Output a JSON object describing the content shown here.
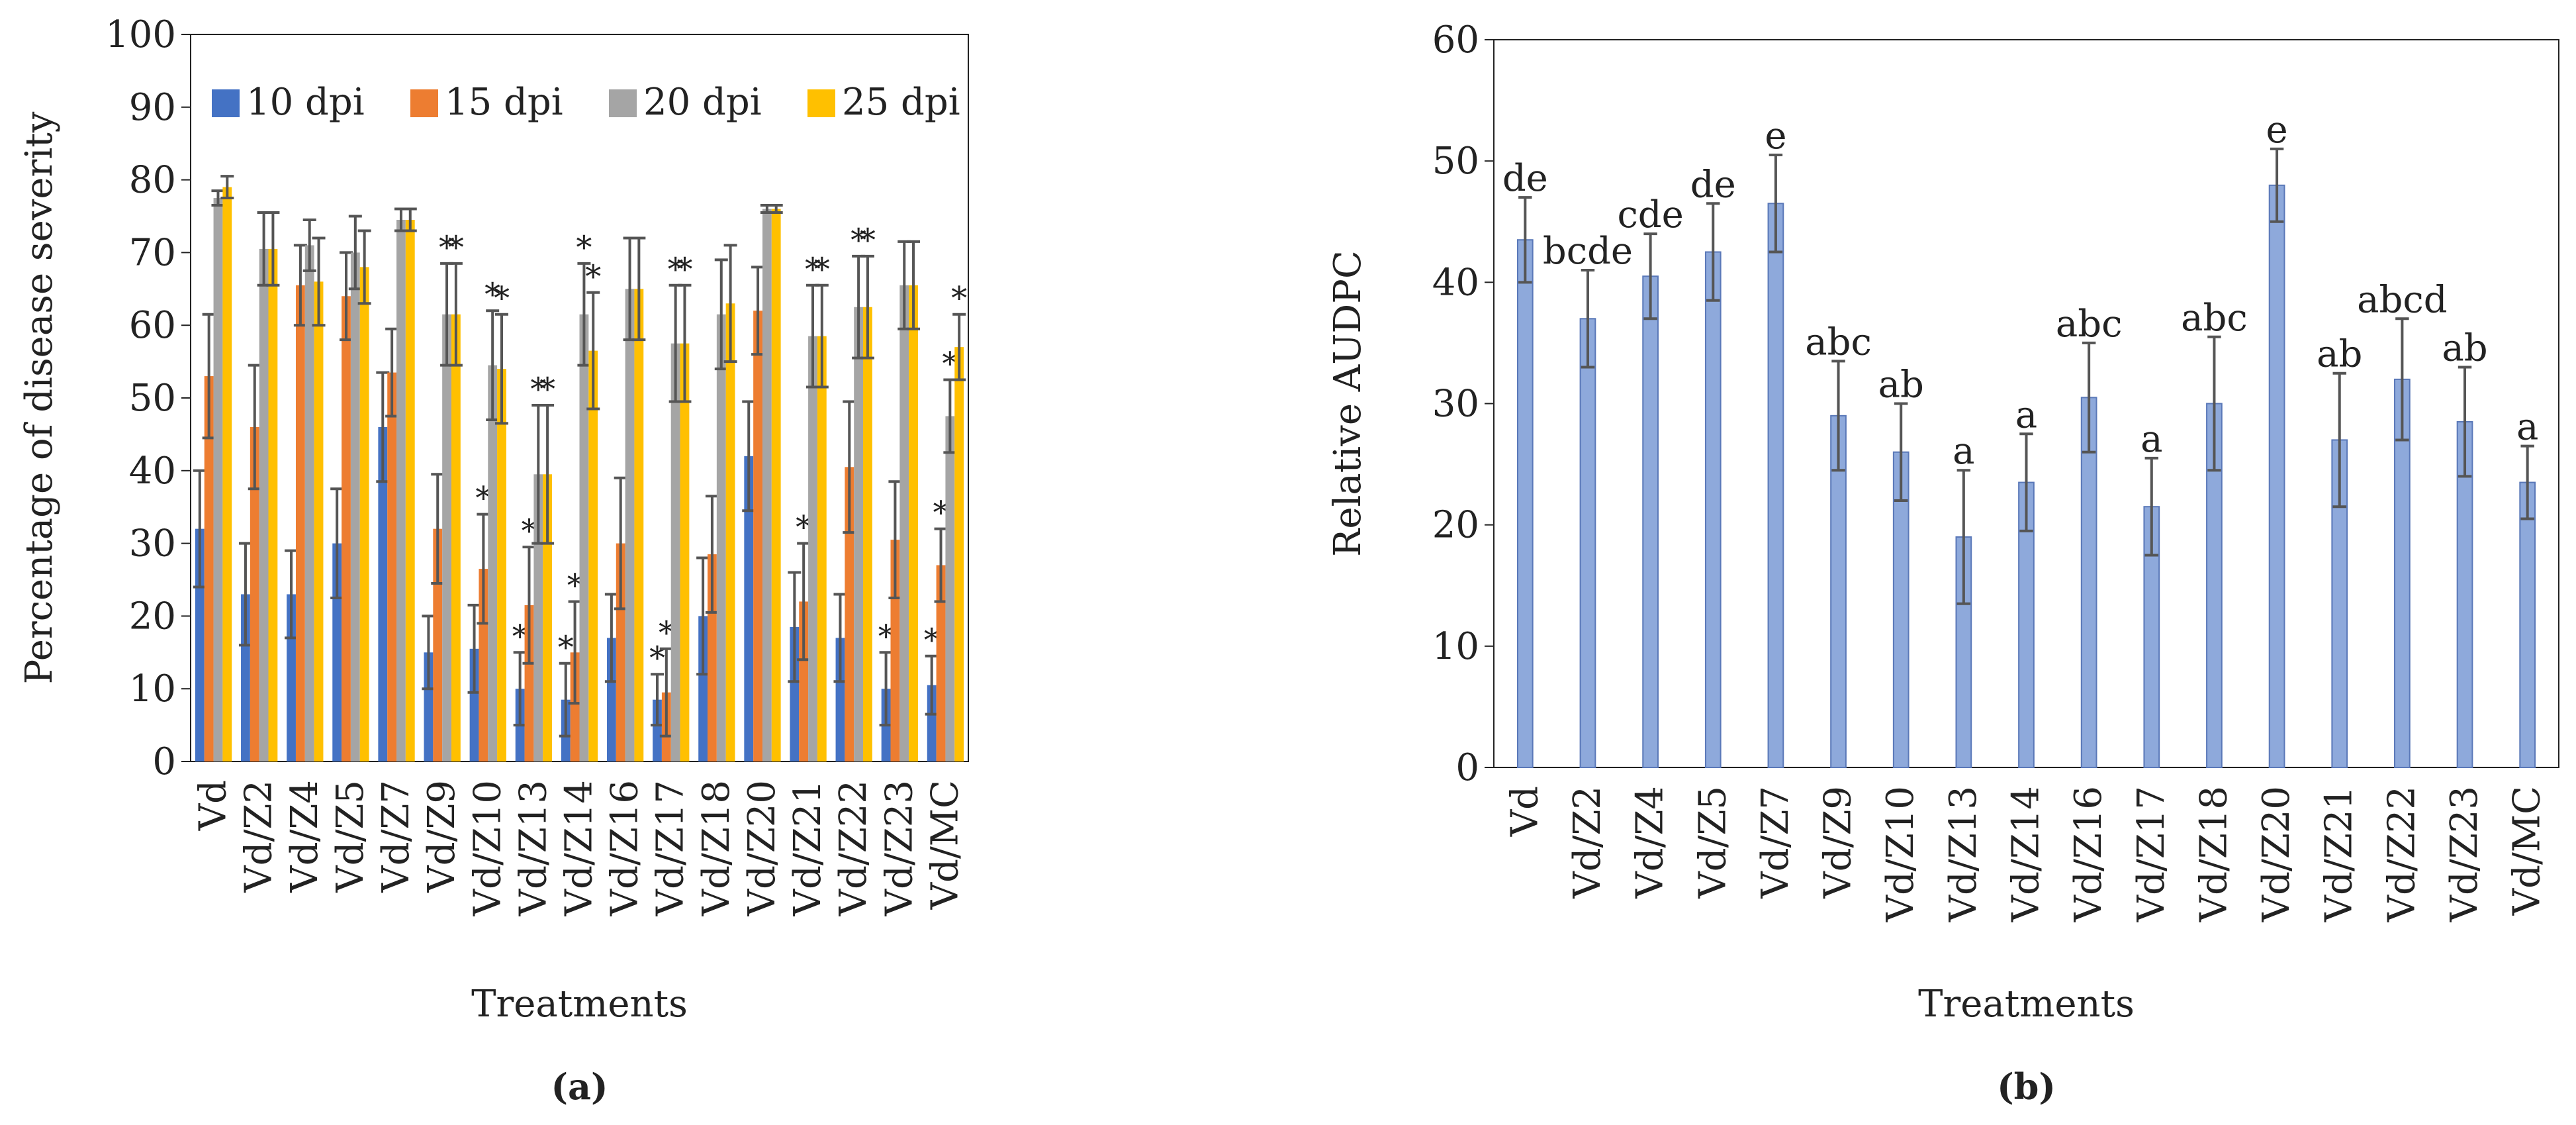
{
  "chart_data": [
    {
      "type": "bar",
      "panel_label": "(a)",
      "title": "",
      "xlabel": "Treatments",
      "ylabel": "Percentage of disease severity",
      "ylim": [
        0,
        100
      ],
      "yticks": [
        "0",
        "10",
        "20",
        "30",
        "40",
        "50",
        "60",
        "70",
        "80",
        "90",
        "100"
      ],
      "grid": false,
      "legend_position": "top-left",
      "categories": [
        "Vd",
        "Vd/Z2",
        "Vd/Z4",
        "Vd/Z5",
        "Vd/Z7",
        "Vd/Z9",
        "Vd/Z10",
        "Vd/Z13",
        "Vd/Z14",
        "Vd/Z16",
        "Vd/Z17",
        "Vd/Z18",
        "Vd/Z20",
        "Vd/Z21",
        "Vd/Z22",
        "Vd/Z23",
        "Vd/MC"
      ],
      "series": [
        {
          "name": "10 dpi",
          "color": "#4472C4",
          "values": [
            32,
            23,
            23,
            30,
            46,
            15,
            15.5,
            10,
            8.5,
            17,
            8.5,
            20,
            42,
            18.5,
            17,
            10,
            10.5
          ],
          "errors": [
            8,
            7,
            6,
            7.5,
            7.5,
            5,
            6,
            5,
            5,
            6,
            3.5,
            8,
            7.5,
            7.5,
            6,
            5,
            4
          ],
          "labels": [
            "",
            "",
            "",
            "",
            "",
            "",
            "",
            "*",
            "*",
            "",
            "*",
            "",
            "",
            "",
            "",
            "*",
            "*"
          ]
        },
        {
          "name": "15 dpi",
          "color": "#ED7D31",
          "values": [
            53,
            46,
            65.5,
            64,
            53.5,
            32,
            26.5,
            21.5,
            15,
            30,
            9.5,
            28.5,
            62,
            22,
            40.5,
            30.5,
            27
          ],
          "errors": [
            8.5,
            8.5,
            5.5,
            6,
            6,
            7.5,
            7.5,
            8,
            7,
            9,
            6,
            8,
            6,
            8,
            9,
            8,
            5
          ],
          "labels": [
            "",
            "",
            "",
            "",
            "",
            "",
            "*",
            "*",
            "*",
            "",
            "*",
            "",
            "",
            "*",
            "",
            "",
            "*"
          ]
        },
        {
          "name": "20 dpi",
          "color": "#A5A5A5",
          "values": [
            77.5,
            70.5,
            71,
            70,
            74.5,
            61.5,
            54.5,
            39.5,
            61.5,
            65,
            57.5,
            61.5,
            76,
            58.5,
            62.5,
            65.5,
            47.5
          ],
          "errors": [
            1,
            5,
            3.5,
            5,
            1.5,
            7,
            7.5,
            9.5,
            7,
            7,
            8,
            7.5,
            0.5,
            7,
            7,
            6,
            5
          ],
          "labels": [
            "",
            "",
            "",
            "",
            "",
            "*",
            "*",
            "*",
            "*",
            "",
            "*",
            "",
            "",
            "*",
            "*",
            "",
            "*"
          ]
        },
        {
          "name": "25 dpi",
          "color": "#FFC000",
          "values": [
            79,
            70.5,
            66,
            68,
            74.5,
            61.5,
            54,
            39.5,
            56.5,
            65,
            57.5,
            63,
            76,
            58.5,
            62.5,
            65.5,
            57
          ],
          "errors": [
            1.5,
            5,
            6,
            5,
            1.5,
            7,
            7.5,
            9.5,
            8,
            7,
            8,
            8,
            0.5,
            7,
            7,
            6,
            4.5
          ],
          "labels": [
            "",
            "",
            "",
            "",
            "",
            "*",
            "*",
            "*",
            "*",
            "",
            "*",
            "",
            "",
            "*",
            "*",
            "",
            "*"
          ]
        }
      ]
    },
    {
      "type": "bar",
      "panel_label": "(b)",
      "title": "",
      "xlabel": "Treatments",
      "ylabel": "Relative AUDPC",
      "ylim": [
        0,
        60
      ],
      "yticks": [
        "0",
        "10",
        "20",
        "30",
        "40",
        "50",
        "60"
      ],
      "grid": false,
      "categories": [
        "Vd",
        "Vd/Z2",
        "Vd/Z4",
        "Vd/Z5",
        "Vd/Z7",
        "Vd/Z9",
        "Vd/Z10",
        "Vd/Z13",
        "Vd/Z14",
        "Vd/Z16",
        "Vd/Z17",
        "Vd/Z18",
        "Vd/Z20",
        "Vd/Z21",
        "Vd/Z22",
        "Vd/Z23",
        "Vd/MC"
      ],
      "series": [
        {
          "name": "Relative AUDPC",
          "color": "#8EA9DB",
          "values": [
            43.5,
            37,
            40.5,
            42.5,
            46.5,
            29,
            26,
            19,
            23.5,
            30.5,
            21.5,
            30,
            48,
            27,
            32,
            28.5,
            23.5
          ],
          "errors": [
            3.5,
            4,
            3.5,
            4,
            4,
            4.5,
            4,
            5.5,
            4,
            4.5,
            4,
            5.5,
            3,
            5.5,
            5,
            4.5,
            3
          ],
          "labels": [
            "de",
            "bcde",
            "cde",
            "de",
            "e",
            "abc",
            "ab",
            "a",
            "a",
            "abc",
            "a",
            "abc",
            "e",
            "ab",
            "abcd",
            "ab",
            "a"
          ]
        }
      ]
    }
  ]
}
